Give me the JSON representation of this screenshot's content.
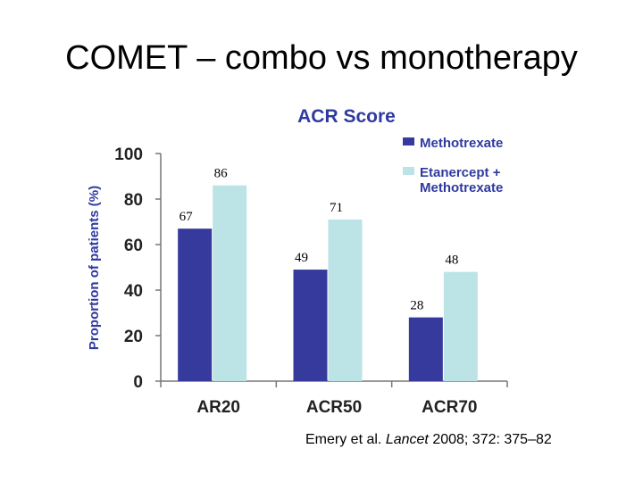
{
  "slide": {
    "title": "COMET – combo vs monotherapy"
  },
  "citation": {
    "authors": "Emery et al.",
    "journal": "Lancet",
    "details": "2008; 372: 375–82"
  },
  "colors": {
    "methotrexate": "#363a9c",
    "etanercept_methotrexate": "#bce3e6",
    "axis_text": "#222222",
    "ylabel_text": "#2f3aa0",
    "chart_title": "#2f3aa0"
  },
  "chart_data": {
    "type": "bar",
    "title": "ACR Score",
    "xlabel": "",
    "ylabel": "Proportion of patients (%)",
    "ylim": [
      0,
      100
    ],
    "yticks": [
      0,
      20,
      40,
      60,
      80,
      100
    ],
    "grid": false,
    "legend_position": "top-right",
    "categories": [
      "AR20",
      "ACR50",
      "ACR70"
    ],
    "series": [
      {
        "name": "Methotrexate",
        "values": [
          67,
          49,
          28
        ]
      },
      {
        "name": "Etanercept + Methotrexate",
        "values": [
          86,
          71,
          48
        ]
      }
    ]
  }
}
